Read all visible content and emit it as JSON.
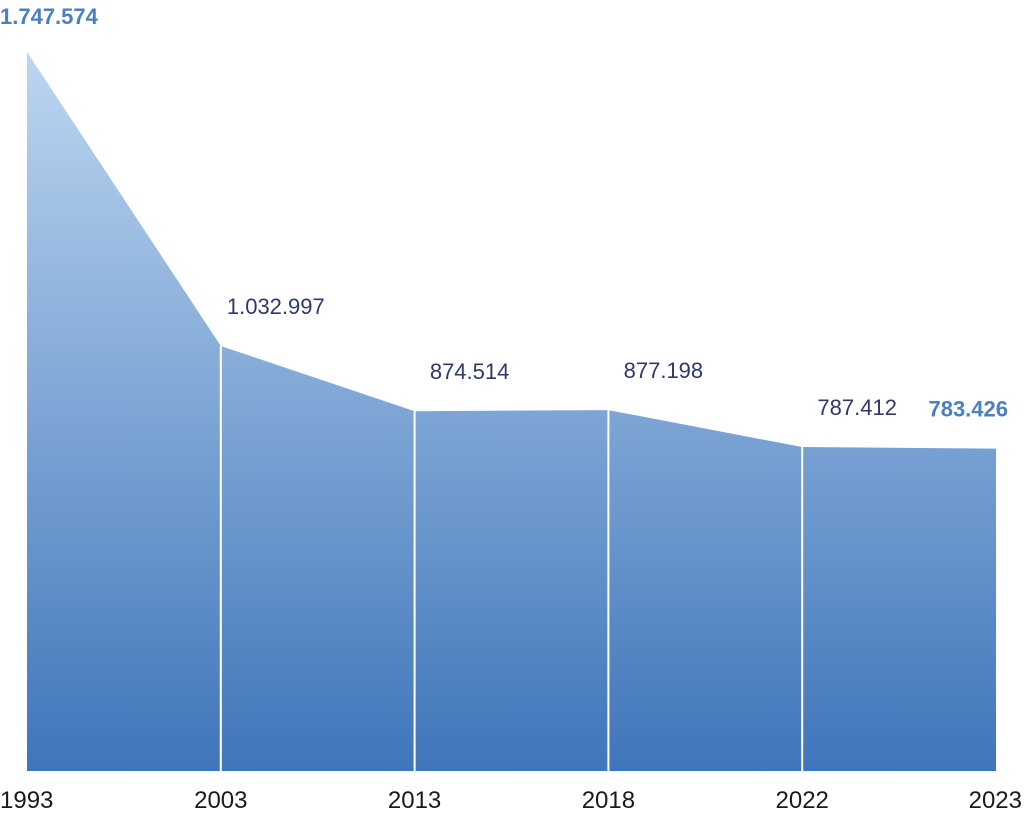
{
  "chart_data": {
    "type": "area",
    "categories": [
      "1993",
      "2003",
      "2013",
      "2018",
      "2022",
      "2023"
    ],
    "values": [
      1747574,
      1032997,
      874514,
      877198,
      787412,
      783426
    ],
    "data_labels": [
      "1.747.574",
      "1.032.997",
      "874.514",
      "877.198",
      "787.412",
      "783.426"
    ],
    "emphasized_labels": [
      0,
      5
    ],
    "ylim": [
      0,
      1747574
    ],
    "title": "",
    "xlabel": "",
    "ylabel": "",
    "grid": false,
    "legend": "none",
    "colors": {
      "fill_top": "#bcd6f0",
      "fill_bottom": "#3f75ba",
      "divider": "#ffffff",
      "label": "#2b3a67",
      "emphasis_label": "#4a7fc1"
    }
  }
}
